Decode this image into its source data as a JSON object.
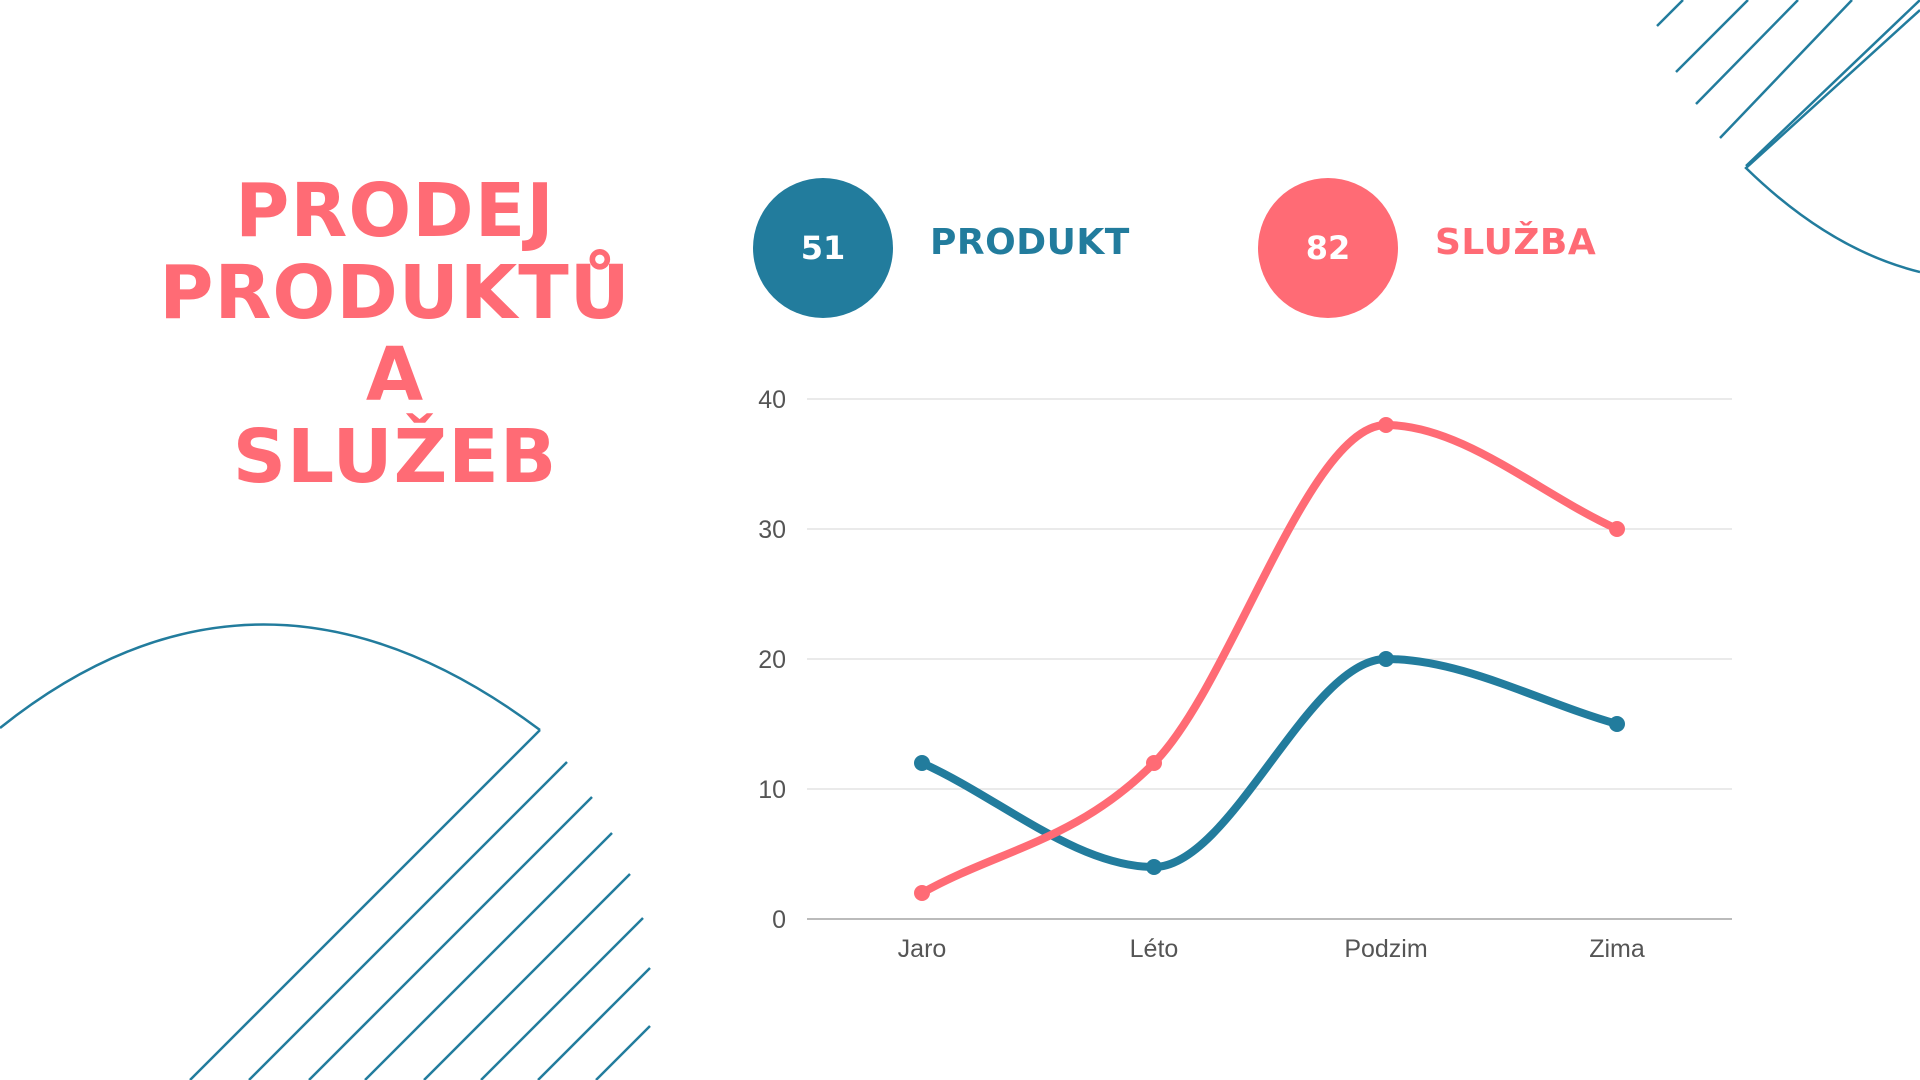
{
  "title_lines": [
    "PRODEJ",
    "PRODUKTŮ",
    "A",
    "SLUŽEB"
  ],
  "legend": [
    {
      "value": "51",
      "label": "PRODUKT",
      "color": "#227C9D"
    },
    {
      "value": "82",
      "label": "SLUŽBA",
      "color": "#FF6B75"
    }
  ],
  "colors": {
    "title": "#FF6B75",
    "accent_blue": "#227C9D",
    "accent_red": "#FF6B75",
    "grid": "#DDDDDD"
  },
  "chart_data": {
    "type": "line",
    "smooth": true,
    "categories": [
      "Jaro",
      "Léto",
      "Podzim",
      "Zima"
    ],
    "series": [
      {
        "name": "PRODUKT",
        "color": "#227C9D",
        "values": [
          12,
          4,
          20,
          15
        ]
      },
      {
        "name": "SLUŽBA",
        "color": "#FF6B75",
        "values": [
          2,
          12,
          38,
          30
        ]
      }
    ],
    "ylim": [
      0,
      40
    ],
    "yticks": [
      0,
      10,
      20,
      30,
      40
    ],
    "grid": true,
    "legend_position": "top"
  }
}
